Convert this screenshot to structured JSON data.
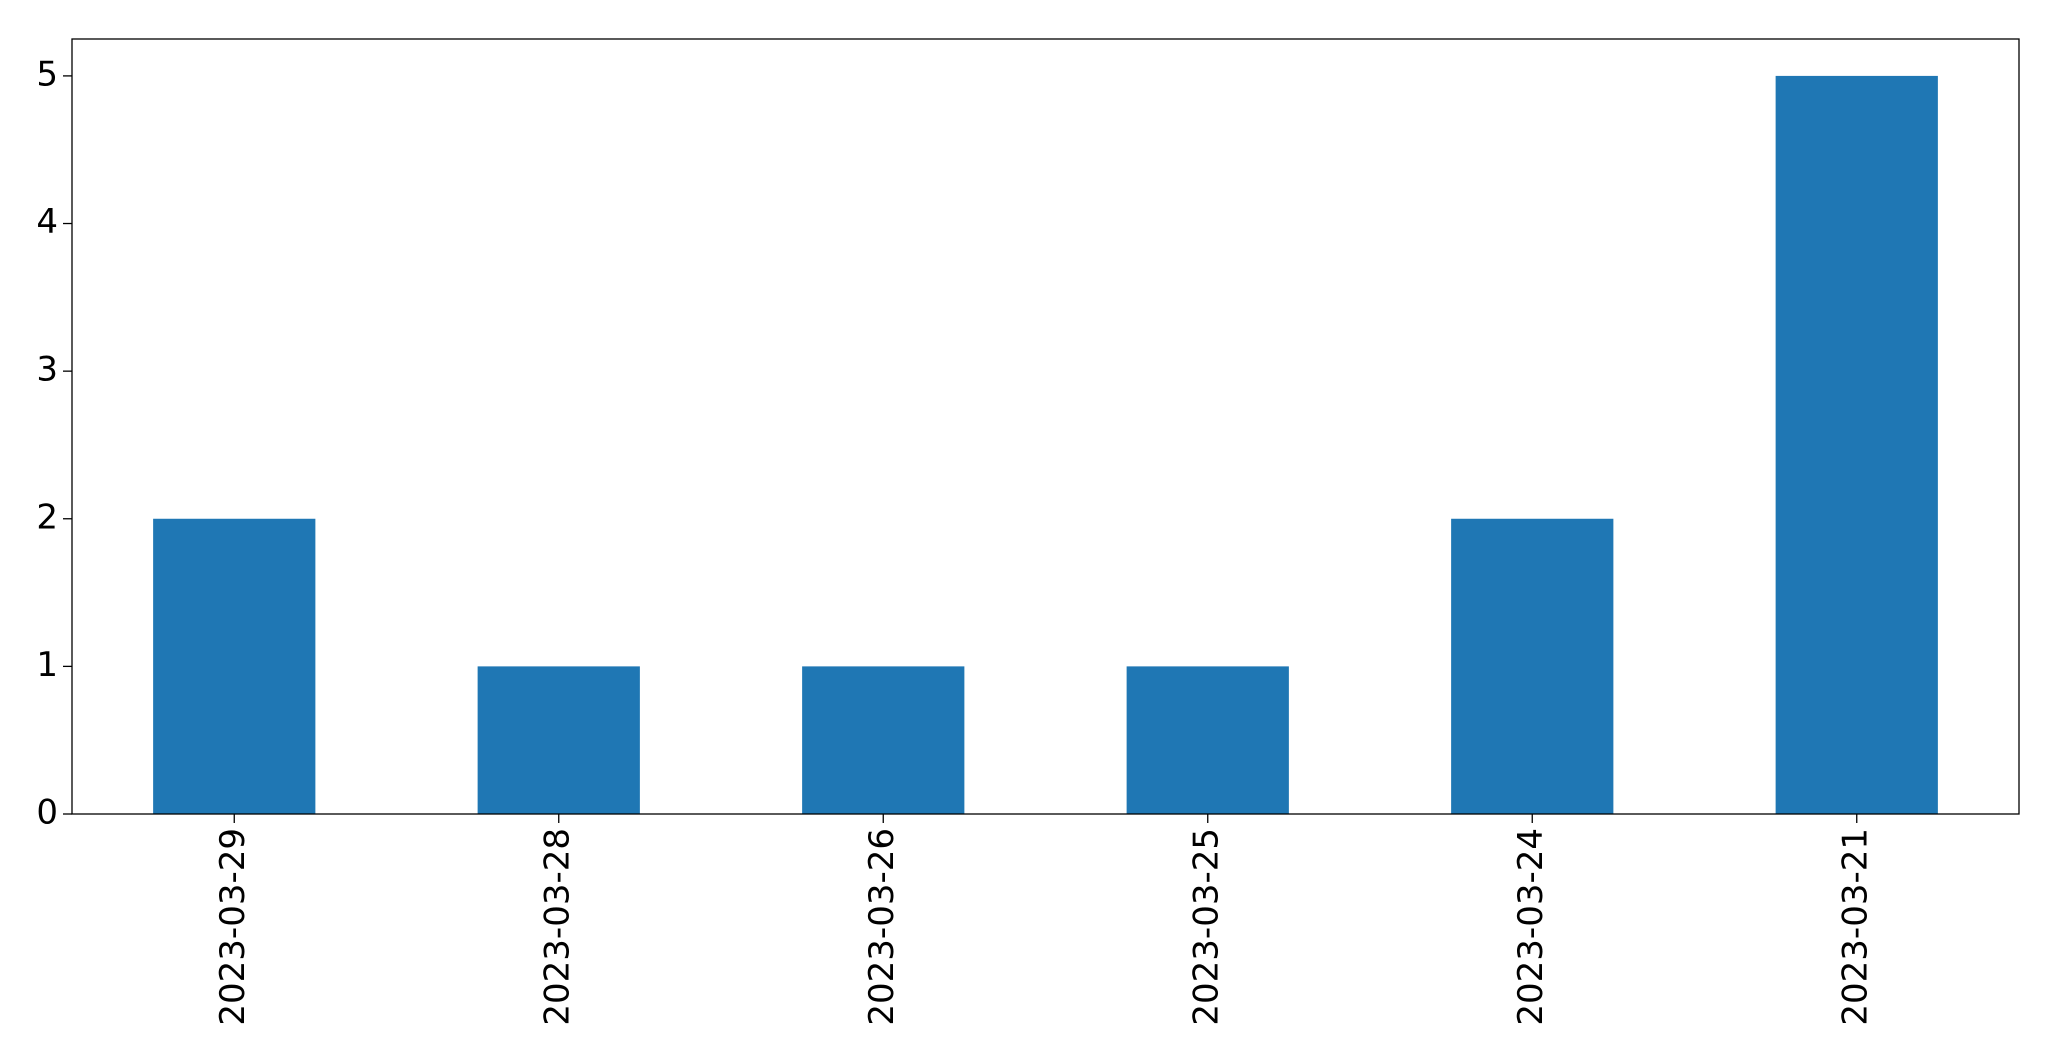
{
  "chart_data": {
    "type": "bar",
    "categories": [
      "2023-03-29",
      "2023-03-28",
      "2023-03-26",
      "2023-03-25",
      "2023-03-24",
      "2023-03-21"
    ],
    "values": [
      2,
      1,
      1,
      1,
      2,
      5
    ],
    "color": "#1f77b4",
    "ylim": [
      0,
      5.25
    ],
    "yticks": [
      0,
      1,
      2,
      3,
      4,
      5
    ],
    "grid": false
  }
}
